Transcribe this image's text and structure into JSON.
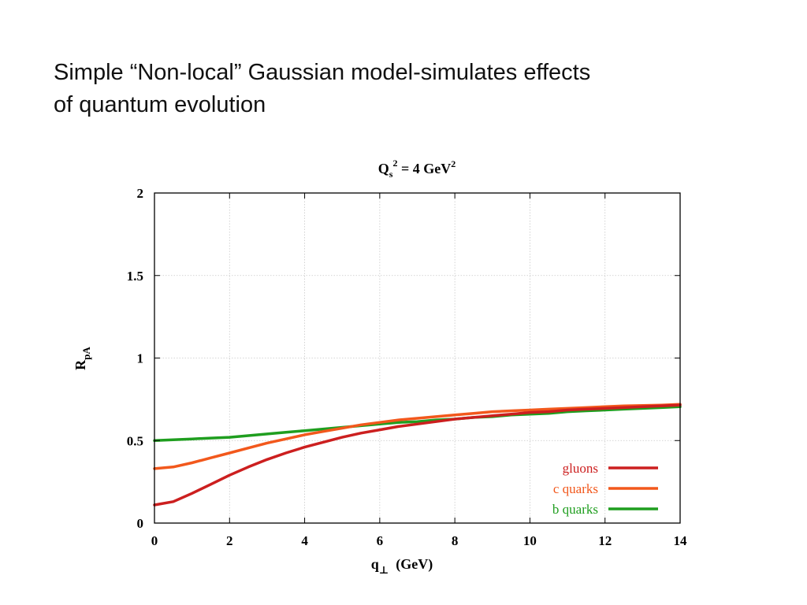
{
  "slide": {
    "title_line1": "Simple “Non-local” Gaussian model-simulates effects",
    "title_line2": "of quantum evolution"
  },
  "chart_data": {
    "type": "line",
    "title": {
      "base": "Q",
      "sub": "s",
      "sup": "2",
      "rest": " = 4 GeV",
      "sup2": "2"
    },
    "xlabel": {
      "base": "q",
      "sub": "⊥",
      "rest": "  (GeV)"
    },
    "ylabel": {
      "base": "R",
      "sub": "pA"
    },
    "xlim": [
      0,
      14
    ],
    "ylim": [
      0,
      2
    ],
    "xticks": [
      0,
      2,
      4,
      6,
      8,
      10,
      12,
      14
    ],
    "yticks": [
      0,
      0.5,
      1,
      1.5,
      2
    ],
    "ytick_labels": [
      "0",
      "0.5",
      "1",
      "1.5",
      "2"
    ],
    "grid": true,
    "legend_position": "bottom-right",
    "x": [
      0,
      0.5,
      1,
      1.5,
      2,
      2.5,
      3,
      3.5,
      4,
      4.5,
      5,
      5.5,
      6,
      6.5,
      7,
      7.5,
      8,
      8.5,
      9,
      9.5,
      10,
      10.5,
      11,
      11.5,
      12,
      12.5,
      13,
      13.5,
      14
    ],
    "series": [
      {
        "name": "gluons",
        "color": "#cc1f1f",
        "values": [
          0.11,
          0.13,
          0.18,
          0.235,
          0.29,
          0.34,
          0.385,
          0.425,
          0.46,
          0.49,
          0.52,
          0.545,
          0.565,
          0.585,
          0.6,
          0.615,
          0.63,
          0.64,
          0.65,
          0.66,
          0.67,
          0.675,
          0.685,
          0.69,
          0.695,
          0.7,
          0.705,
          0.71,
          0.715
        ]
      },
      {
        "name": "c quarks",
        "color": "#f2581c",
        "values": [
          0.33,
          0.34,
          0.365,
          0.395,
          0.425,
          0.455,
          0.485,
          0.51,
          0.535,
          0.555,
          0.575,
          0.595,
          0.61,
          0.625,
          0.635,
          0.645,
          0.655,
          0.665,
          0.675,
          0.68,
          0.685,
          0.69,
          0.695,
          0.7,
          0.705,
          0.71,
          0.712,
          0.715,
          0.72
        ]
      },
      {
        "name": "b quarks",
        "color": "#1f9e1f",
        "values": [
          0.5,
          0.505,
          0.51,
          0.515,
          0.52,
          0.53,
          0.54,
          0.55,
          0.56,
          0.57,
          0.58,
          0.59,
          0.6,
          0.61,
          0.615,
          0.625,
          0.63,
          0.64,
          0.645,
          0.655,
          0.66,
          0.665,
          0.675,
          0.68,
          0.685,
          0.69,
          0.695,
          0.7,
          0.705
        ]
      }
    ]
  }
}
